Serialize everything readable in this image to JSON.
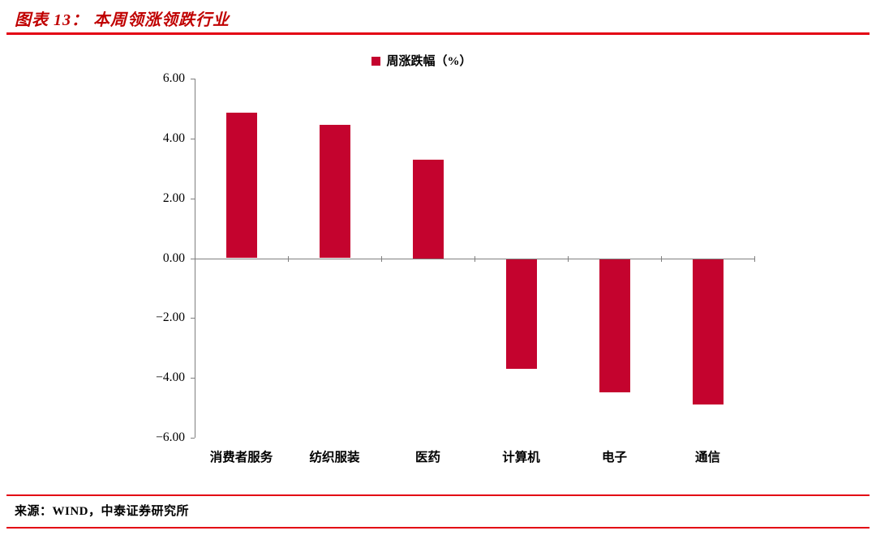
{
  "header": {
    "title": "图表 13： 本周领涨领跌行业"
  },
  "footer": {
    "source": "来源：WIND，中泰证券研究所"
  },
  "colors": {
    "bar": "#C4032E",
    "title": "#C00000",
    "rule": "#E30013",
    "axis": "#7F7F7F"
  },
  "chart_data": {
    "type": "bar",
    "title": "本周领涨领跌行业",
    "legend": "周涨跌幅（%）",
    "legend_position": "top",
    "categories": [
      "消费者服务",
      "纺织服装",
      "医药",
      "计算机",
      "电子",
      "通信"
    ],
    "values": [
      4.85,
      4.45,
      3.3,
      -3.65,
      -4.45,
      -4.85
    ],
    "xlabel": "",
    "ylabel": "",
    "ylim": [
      -6,
      6
    ],
    "ytick_step": 2,
    "ytick_labels": [
      "6.00",
      "4.00",
      "2.00",
      "0.00",
      "−2.00",
      "−4.00",
      "−6.00"
    ],
    "grid": false
  }
}
